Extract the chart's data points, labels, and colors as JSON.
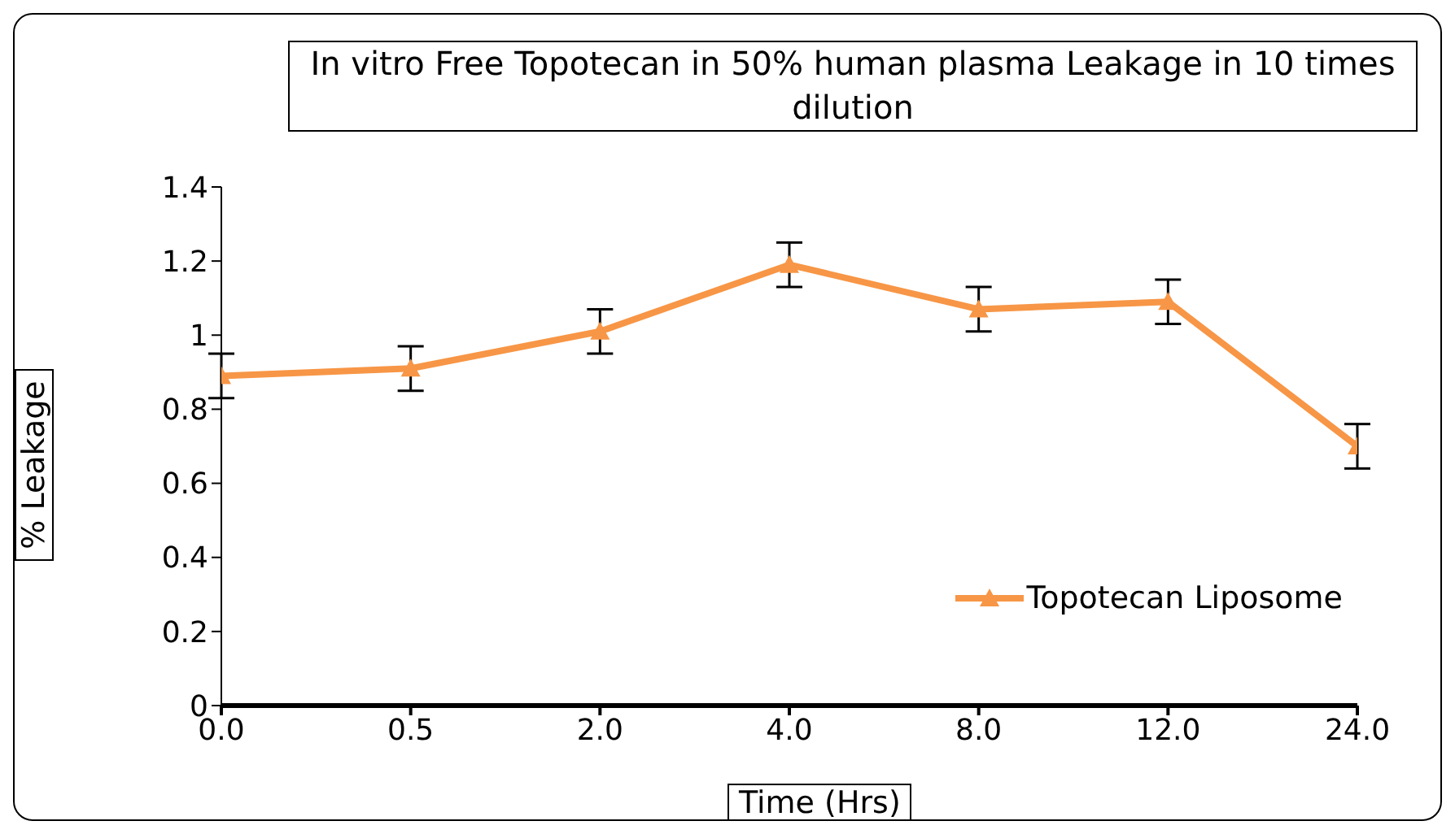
{
  "chart_data": {
    "type": "line",
    "title": "In vitro Free Topotecan in 50% human plasma Leakage in 10 times dilution",
    "xlabel": "Time (Hrs)",
    "ylabel": "% Leakage",
    "categories": [
      "0.0",
      "0.5",
      "2.0",
      "4.0",
      "8.0",
      "12.0",
      "24.0"
    ],
    "series": [
      {
        "name": "Topotecan Liposome",
        "color": "#f79646",
        "values": [
          0.89,
          0.91,
          1.01,
          1.19,
          1.07,
          1.09,
          0.7
        ],
        "errors": [
          0.06,
          0.06,
          0.06,
          0.06,
          0.06,
          0.06,
          0.06
        ]
      }
    ],
    "ylim": [
      0,
      1.4
    ],
    "yticks": [
      0,
      0.2,
      0.4,
      0.6,
      0.8,
      1,
      1.2,
      1.4
    ],
    "grid": false,
    "legend": "bottom right",
    "marker": "triangle",
    "line_style": "solid"
  }
}
